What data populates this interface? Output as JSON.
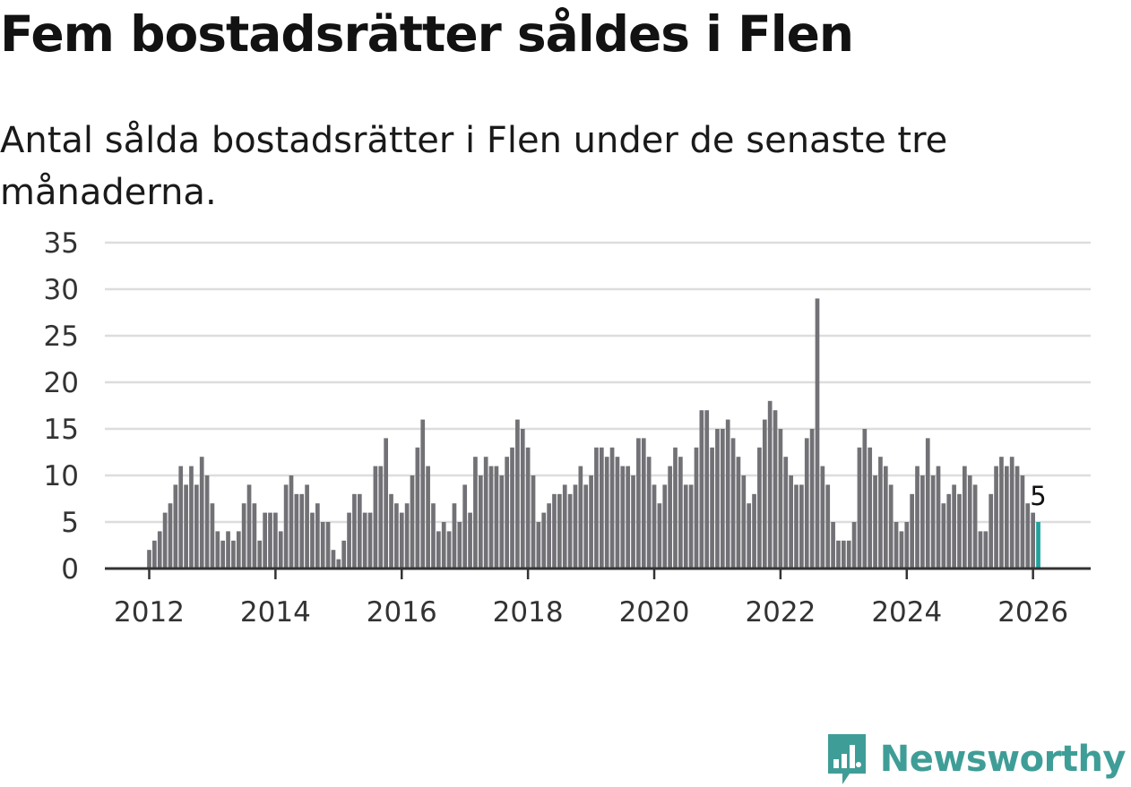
{
  "header": {
    "title": "Fem bostadsrätter såldes i Flen",
    "subtitle": "Antal sålda bostadsrätter i Flen under de senaste tre månaderna."
  },
  "brand": {
    "name": "Newsworthy",
    "logo_icon": "bar-chart-speech-bubble-icon"
  },
  "colors": {
    "bar": "#727176",
    "highlight": "#20a39e",
    "grid": "#dddddd",
    "axis": "#333333",
    "brand": "#3f9d97"
  },
  "chart_data": {
    "type": "bar",
    "title": "Fem bostadsrätter såldes i Flen",
    "subtitle": "Antal sålda bostadsrätter i Flen under de senaste tre månaderna.",
    "xlabel": "",
    "ylabel": "",
    "ylim": [
      0,
      35
    ],
    "yticks": [
      "0",
      "5",
      "10",
      "15",
      "20",
      "25",
      "30",
      "35"
    ],
    "xticks": [
      "2012",
      "2014",
      "2016",
      "2018",
      "2020",
      "2022",
      "2024",
      "2026"
    ],
    "grid": true,
    "start": "2012-01",
    "frequency": "monthly",
    "values": [
      2,
      3,
      4,
      6,
      7,
      9,
      11,
      9,
      11,
      9,
      12,
      10,
      7,
      4,
      3,
      4,
      3,
      4,
      7,
      9,
      7,
      3,
      6,
      6,
      6,
      4,
      9,
      10,
      8,
      8,
      9,
      6,
      7,
      5,
      5,
      2,
      1,
      3,
      6,
      8,
      8,
      6,
      6,
      11,
      11,
      14,
      8,
      7,
      6,
      7,
      10,
      13,
      16,
      11,
      7,
      4,
      5,
      4,
      7,
      5,
      9,
      6,
      12,
      10,
      12,
      11,
      11,
      10,
      12,
      13,
      16,
      15,
      13,
      10,
      5,
      6,
      7,
      8,
      8,
      9,
      8,
      9,
      11,
      9,
      10,
      13,
      13,
      12,
      13,
      12,
      11,
      11,
      10,
      14,
      14,
      12,
      9,
      7,
      9,
      11,
      13,
      12,
      9,
      9,
      13,
      17,
      17,
      13,
      15,
      15,
      16,
      14,
      12,
      10,
      7,
      8,
      13,
      16,
      18,
      17,
      15,
      12,
      10,
      9,
      9,
      14,
      15,
      29,
      11,
      9,
      5,
      3,
      3,
      3,
      5,
      13,
      15,
      13,
      10,
      12,
      11,
      9,
      5,
      4,
      5,
      8,
      11,
      10,
      14,
      10,
      11,
      7,
      8,
      9,
      8,
      11,
      10,
      9,
      4,
      4,
      8,
      11,
      12,
      11,
      12,
      11,
      10,
      7,
      6,
      5
    ],
    "highlight_last": true,
    "annotation": {
      "label": "5",
      "value": 5
    }
  }
}
